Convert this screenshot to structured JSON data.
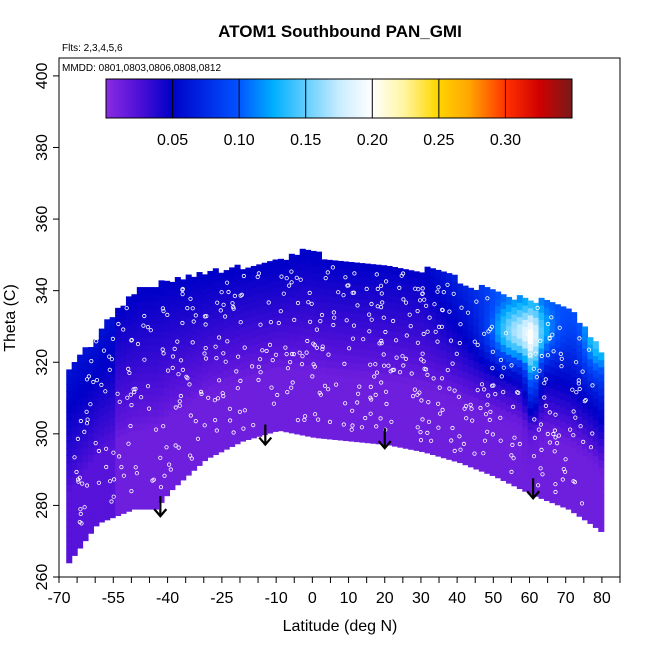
{
  "chart_data": {
    "type": "heatmap",
    "title": "ATOM1 Southbound PAN_GMI",
    "flights_note": "Flts: 2,3,4,5,6",
    "dates_note": "MMDD: 0801,0803,0806,0808,0812",
    "xlabel": "Latitude (deg N)",
    "ylabel": "Theta (C)",
    "xlim": [
      -70,
      85
    ],
    "ylim": [
      260,
      405
    ],
    "x_tick_labels": [
      "-70",
      "-55",
      "-40",
      "-25",
      "-10",
      "0",
      "10",
      "20",
      "30",
      "40",
      "50",
      "60",
      "70",
      "80"
    ],
    "x_tick_values": [
      -70,
      -55,
      -40,
      -25,
      -10,
      0,
      10,
      20,
      30,
      40,
      50,
      60,
      70,
      80
    ],
    "y_tick_labels": [
      "260",
      "280",
      "300",
      "320",
      "340",
      "360",
      "380",
      "400"
    ],
    "y_tick_values": [
      260,
      280,
      300,
      320,
      340,
      360,
      380,
      400
    ],
    "colorbar": {
      "min": 0.0,
      "max": 0.35,
      "tick_values": [
        0.05,
        0.1,
        0.15,
        0.2,
        0.25,
        0.3
      ],
      "tick_labels": [
        "0.05",
        "0.10",
        "0.15",
        "0.20",
        "0.25",
        "0.30"
      ],
      "colors": [
        "#8a2be2",
        "#0000c8",
        "#0000a0",
        "#2060ff",
        "#00b0ff",
        "#c8ecff",
        "#ffffff",
        "#fff5a0",
        "#ffd700",
        "#ffa500",
        "#ff4500",
        "#e00000",
        "#b00000",
        "#7a1a1a"
      ]
    },
    "tropopause_arrows": [
      {
        "lat": -42,
        "theta": 277
      },
      {
        "lat": -13,
        "theta": 297
      },
      {
        "lat": 20,
        "theta": 296
      },
      {
        "lat": 61,
        "theta": 282
      }
    ],
    "data_envelope_top": [
      [
        -68,
        318
      ],
      [
        -62,
        324
      ],
      [
        -55,
        334
      ],
      [
        -48,
        340
      ],
      [
        -40,
        342
      ],
      [
        -30,
        344
      ],
      [
        -20,
        346
      ],
      [
        -10,
        347
      ],
      [
        -3,
        350
      ],
      [
        5,
        348
      ],
      [
        15,
        347
      ],
      [
        25,
        346
      ],
      [
        35,
        344
      ],
      [
        45,
        340
      ],
      [
        55,
        337
      ],
      [
        65,
        336
      ],
      [
        72,
        332
      ],
      [
        78,
        324
      ],
      [
        80,
        320
      ]
    ],
    "data_envelope_bottom": [
      [
        -68,
        264
      ],
      [
        -60,
        275
      ],
      [
        -50,
        279
      ],
      [
        -44,
        279
      ],
      [
        -40,
        284
      ],
      [
        -30,
        293
      ],
      [
        -20,
        298
      ],
      [
        -10,
        301
      ],
      [
        0,
        299
      ],
      [
        10,
        298
      ],
      [
        20,
        297
      ],
      [
        30,
        295
      ],
      [
        40,
        292
      ],
      [
        50,
        288
      ],
      [
        60,
        283
      ],
      [
        70,
        279
      ],
      [
        76,
        275
      ],
      [
        80,
        272
      ]
    ],
    "value_field_description_regions": [
      {
        "lat_range": [
          -68,
          80
        ],
        "theta_range": [
          260,
          310
        ],
        "value": 0.02
      },
      {
        "lat_range": [
          -68,
          80
        ],
        "theta_range": [
          310,
          352
        ],
        "value": 0.06
      },
      {
        "lat_range": [
          35,
          80
        ],
        "theta_range": [
          315,
          340
        ],
        "value": 0.12
      },
      {
        "lat_range": [
          50,
          65
        ],
        "theta_range": [
          320,
          335
        ],
        "value": 0.16
      }
    ]
  }
}
